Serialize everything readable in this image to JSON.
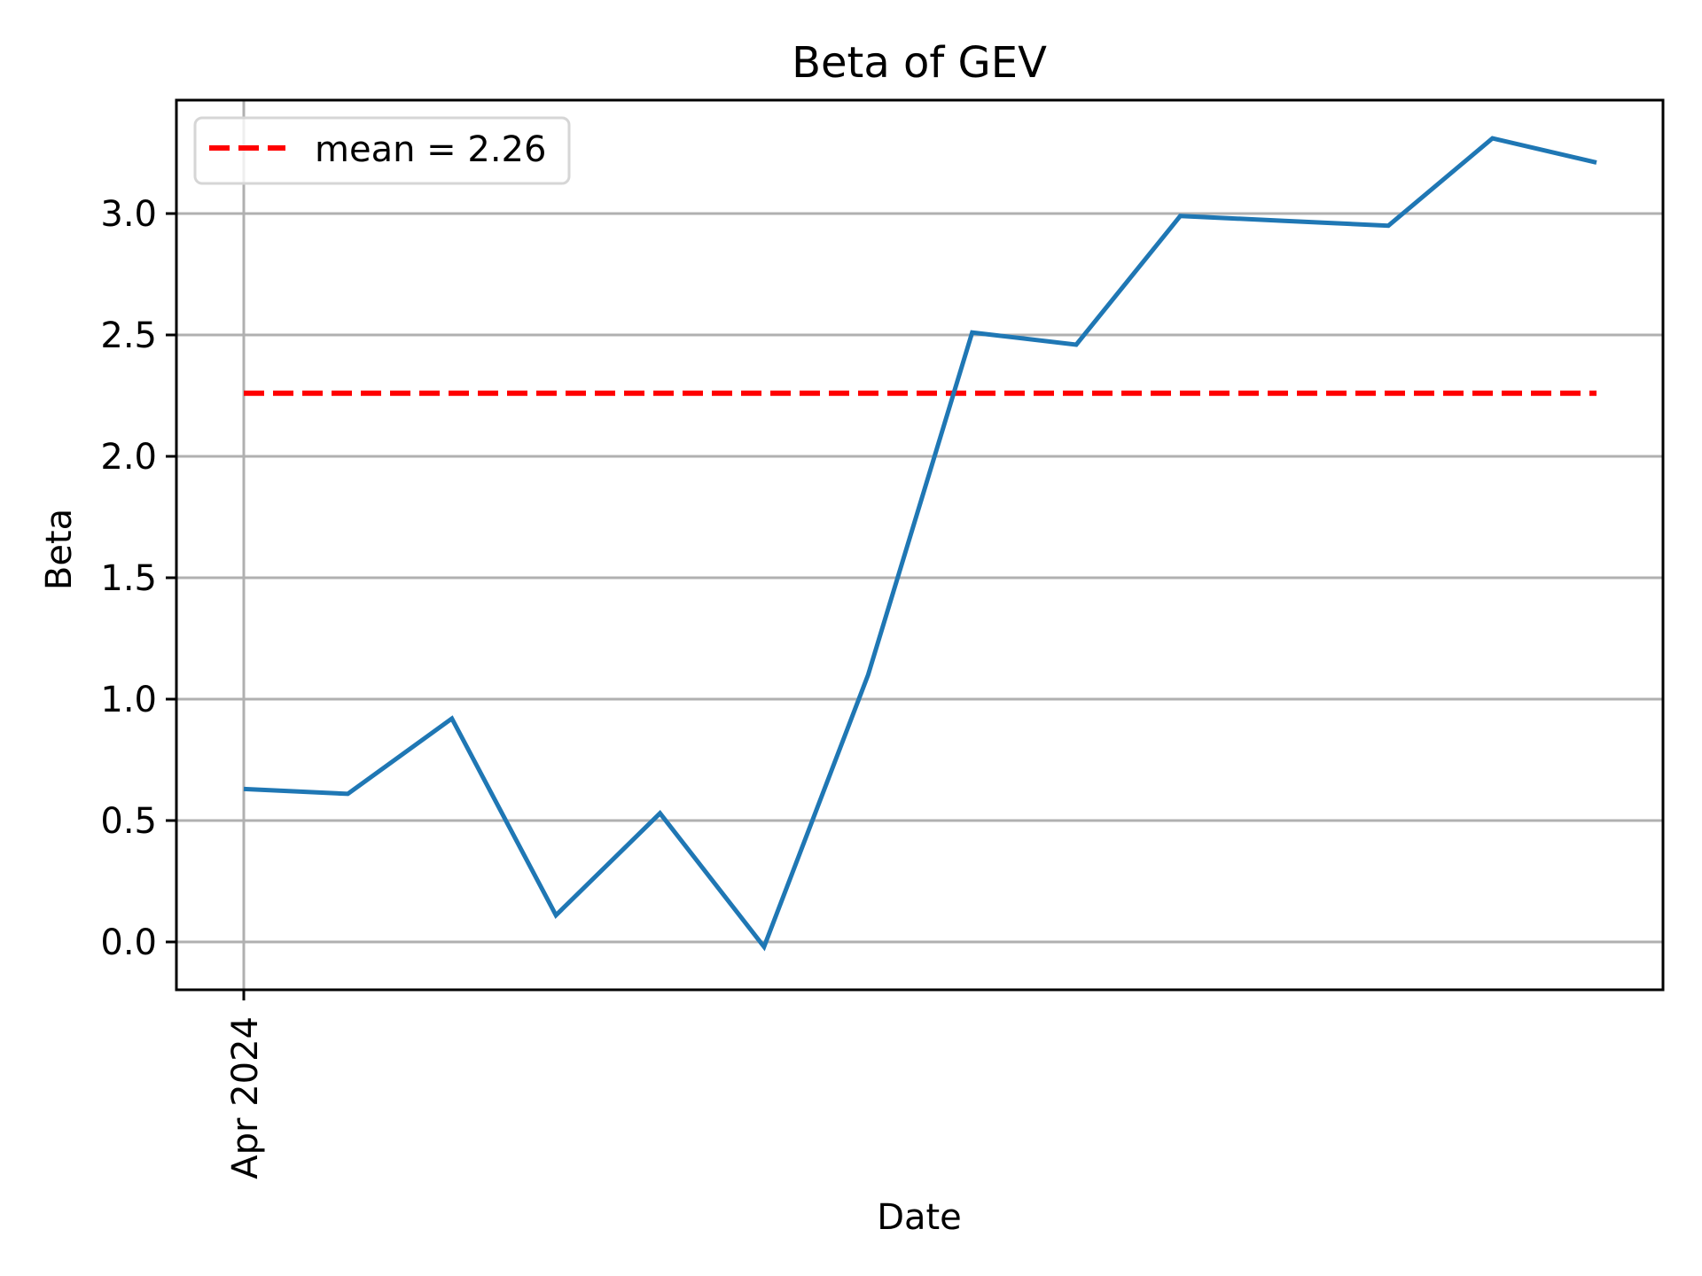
{
  "chart_data": {
    "type": "line",
    "title": "Beta of GEV",
    "xlabel": "Date",
    "ylabel": "Beta",
    "x_tick_labels": [
      "Apr 2024"
    ],
    "x_tick_index": [
      0
    ],
    "y_ticks": [
      0.0,
      0.5,
      1.0,
      1.5,
      2.0,
      2.5,
      3.0
    ],
    "y_tick_labels": [
      "0.0",
      "0.5",
      "1.0",
      "1.5",
      "2.0",
      "2.5",
      "3.0"
    ],
    "ylim": [
      -0.2,
      3.47
    ],
    "grid": true,
    "legend_position": "upper left",
    "series": [
      {
        "name": "Beta",
        "color": "#1f77b4",
        "style": "solid",
        "values": [
          0.63,
          0.61,
          0.92,
          0.11,
          0.53,
          -0.02,
          1.1,
          2.51,
          2.46,
          2.99,
          2.97,
          2.95,
          3.31,
          3.21
        ]
      }
    ],
    "reference_lines": [
      {
        "name": "mean",
        "value": 2.26,
        "color": "#ff0000",
        "style": "dashed",
        "label": "mean = 2.26"
      }
    ]
  },
  "legend": {
    "items": [
      {
        "label": "mean = 2.26",
        "color": "#ff0000",
        "style": "dashed"
      }
    ]
  }
}
